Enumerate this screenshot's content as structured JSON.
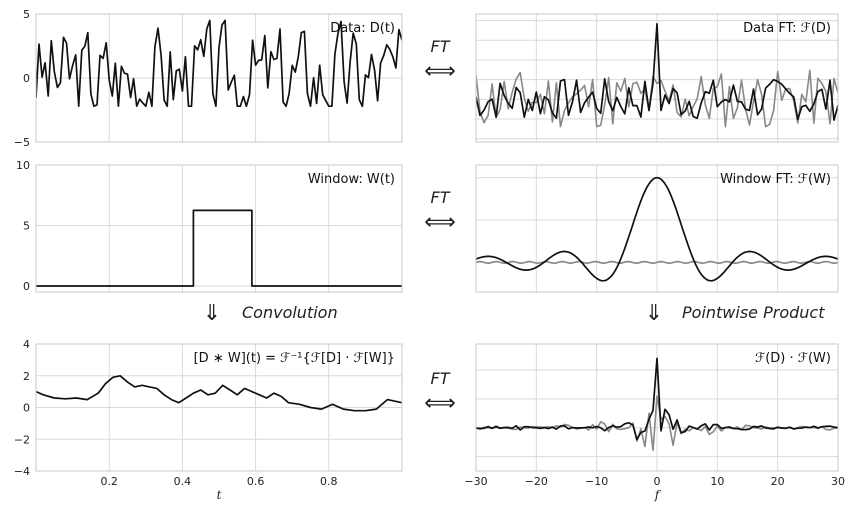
{
  "colors": {
    "primary": "#111111",
    "secondary": "#888888",
    "grid": "#d9d9d9",
    "frame": "#c8c8c8"
  },
  "annotations": {
    "ft_label": "FT",
    "double_arrow": "⟺",
    "down_arrow": "⇓",
    "convolution": "Convolution",
    "pointwise": "Pointwise Product"
  },
  "chart_data": [
    {
      "id": "data",
      "type": "line",
      "title": "Data: D(t)",
      "xlim": [
        0,
        1
      ],
      "ylim": [
        -5,
        5
      ],
      "yticks": [
        -5,
        0,
        5
      ],
      "xticks": [
        0.2,
        0.4,
        0.6,
        0.8
      ],
      "show_xtick_labels": false,
      "series": [
        {
          "kind": "noise",
          "color": "#111111",
          "amp": 2.3,
          "n": 120,
          "seed": 3
        }
      ]
    },
    {
      "id": "data_ft",
      "type": "line",
      "title": "Data FT: ℱ(D)",
      "xlim": [
        -30,
        30
      ],
      "ylim": [
        -1.3,
        2.6
      ],
      "xticks": [
        -20,
        -10,
        0,
        10,
        20
      ],
      "show_xtick_labels": false,
      "series": [
        {
          "kind": "ftnoise",
          "color": "#888888",
          "amp": 0.45,
          "n": 90,
          "seed": 11,
          "peak": 0
        },
        {
          "kind": "ftnoise",
          "color": "#111111",
          "amp": 0.32,
          "n": 90,
          "seed": 7,
          "peak": 2.3
        }
      ]
    },
    {
      "id": "window",
      "type": "line",
      "title": "Window: W(t)",
      "xlim": [
        0,
        1
      ],
      "ylim": [
        -0.5,
        10
      ],
      "yticks": [
        0,
        5,
        10
      ],
      "xticks": [
        0.2,
        0.4,
        0.6,
        0.8
      ],
      "show_xtick_labels": false,
      "series": [
        {
          "kind": "box",
          "color": "#111111",
          "x": [
            0,
            0.43,
            0.43,
            0.59,
            0.59,
            1
          ],
          "y": [
            0,
            0,
            6.25,
            6.25,
            0,
            0
          ]
        }
      ]
    },
    {
      "id": "window_ft",
      "type": "line",
      "title": "Window FT: ℱ(W)",
      "xlim": [
        -30,
        30
      ],
      "ylim": [
        -0.35,
        1.15
      ],
      "xticks": [
        -20,
        -10,
        0,
        10,
        20
      ],
      "show_xtick_labels": false,
      "series": [
        {
          "kind": "flat",
          "color": "#888888",
          "level": 0.0,
          "ripple": 0.01
        },
        {
          "kind": "sinc",
          "color": "#111111",
          "width": 6.25
        }
      ]
    },
    {
      "id": "conv",
      "type": "line",
      "title": "[D ∗ W](t) = ℱ⁻¹{ℱ[D] · ℱ[W]}",
      "xlim": [
        0,
        1
      ],
      "ylim": [
        -4,
        4
      ],
      "yticks": [
        -4,
        -2,
        0,
        2,
        4
      ],
      "xticks": [
        0.2,
        0.4,
        0.6,
        0.8
      ],
      "xtick_labels": [
        "0.2",
        "0.4",
        "0.6",
        "0.8"
      ],
      "xlabel": "t",
      "series": [
        {
          "kind": "smooth",
          "color": "#111111",
          "x": [
            0,
            0.02,
            0.05,
            0.08,
            0.11,
            0.14,
            0.17,
            0.19,
            0.21,
            0.23,
            0.25,
            0.27,
            0.29,
            0.31,
            0.33,
            0.35,
            0.37,
            0.39,
            0.41,
            0.43,
            0.45,
            0.47,
            0.49,
            0.51,
            0.53,
            0.55,
            0.57,
            0.59,
            0.61,
            0.63,
            0.65,
            0.67,
            0.69,
            0.72,
            0.75,
            0.78,
            0.81,
            0.84,
            0.87,
            0.9,
            0.93,
            0.96,
            1.0
          ],
          "y": [
            1.0,
            0.8,
            0.6,
            0.55,
            0.6,
            0.5,
            0.9,
            1.5,
            1.9,
            2.0,
            1.6,
            1.3,
            1.4,
            1.3,
            1.2,
            0.8,
            0.5,
            0.3,
            0.6,
            0.9,
            1.1,
            0.8,
            0.9,
            1.4,
            1.1,
            0.8,
            1.2,
            1.0,
            0.8,
            0.6,
            0.9,
            0.7,
            0.3,
            0.2,
            0.0,
            -0.1,
            0.2,
            -0.1,
            -0.2,
            -0.2,
            -0.1,
            0.5,
            0.3
          ]
        }
      ]
    },
    {
      "id": "product",
      "type": "line",
      "title": "ℱ(D) · ℱ(W)",
      "xlim": [
        -30,
        30
      ],
      "ylim": [
        -0.75,
        1.45
      ],
      "xticks": [
        -30,
        -20,
        -10,
        0,
        10,
        20,
        30
      ],
      "xtick_labels": [
        "−30",
        "−20",
        "−10",
        "0",
        "10",
        "20",
        "30"
      ],
      "xlabel": "f",
      "series": [
        {
          "kind": "product",
          "color": "#888888",
          "amp": 0.45,
          "seed": 11,
          "peak": 0.0,
          "n": 90
        },
        {
          "kind": "product",
          "color": "#111111",
          "amp": 0.32,
          "seed": 7,
          "peak": 1.2,
          "n": 90
        }
      ]
    }
  ]
}
